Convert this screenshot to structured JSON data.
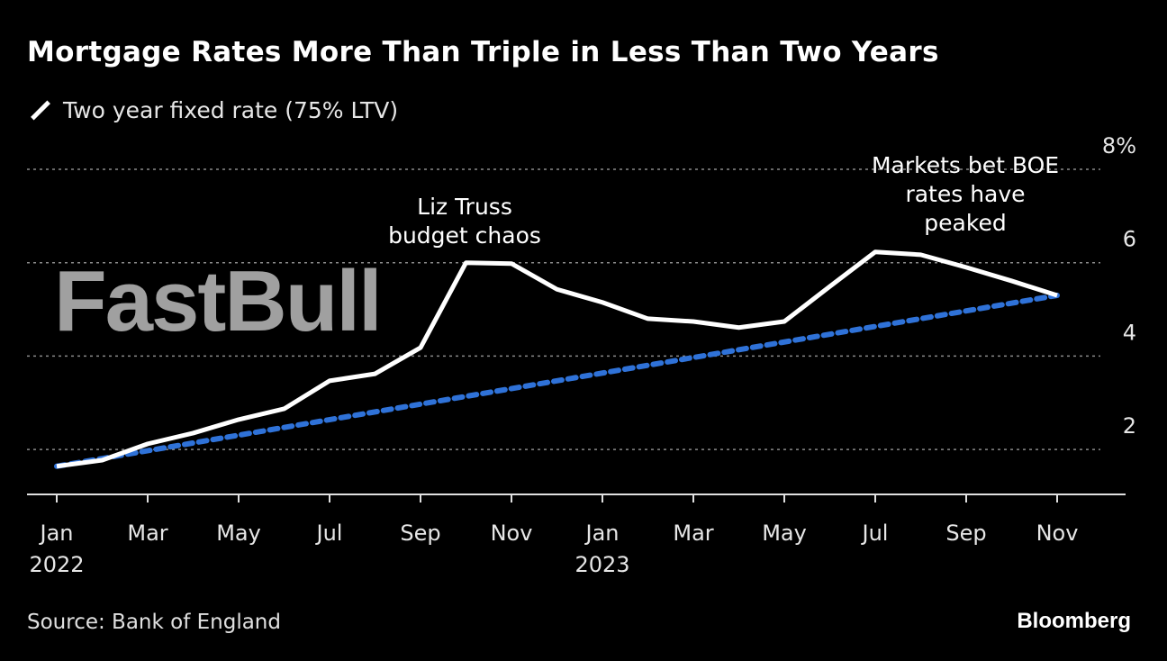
{
  "chart_data": {
    "type": "line",
    "title": "Mortgage Rates More Than Triple in Less Than Two Years",
    "ylim": [
      1,
      8
    ],
    "y_ticks": [
      2,
      4,
      6,
      8
    ],
    "y_tick_labels": [
      "2",
      "4",
      "6",
      "8%"
    ],
    "grid": true,
    "x_ticks": [
      {
        "month": 0,
        "label": "Jan",
        "year": "2022"
      },
      {
        "month": 2,
        "label": "Mar",
        "year": ""
      },
      {
        "month": 4,
        "label": "May",
        "year": ""
      },
      {
        "month": 6,
        "label": "Jul",
        "year": ""
      },
      {
        "month": 8,
        "label": "Sep",
        "year": ""
      },
      {
        "month": 10,
        "label": "Nov",
        "year": ""
      },
      {
        "month": 12,
        "label": "Jan",
        "year": "2023"
      },
      {
        "month": 14,
        "label": "Mar",
        "year": ""
      },
      {
        "month": 16,
        "label": "May",
        "year": ""
      },
      {
        "month": 18,
        "label": "Jul",
        "year": ""
      },
      {
        "month": 20,
        "label": "Sep",
        "year": ""
      },
      {
        "month": 22,
        "label": "Nov",
        "year": ""
      }
    ],
    "x": [
      "2022-01",
      "2022-02",
      "2022-03",
      "2022-04",
      "2022-05",
      "2022-06",
      "2022-07",
      "2022-08",
      "2022-09",
      "2022-10",
      "2022-11",
      "2022-12",
      "2023-01",
      "2023-02",
      "2023-03",
      "2023-04",
      "2023-05",
      "2023-06",
      "2023-07",
      "2023-08",
      "2023-09",
      "2023-10",
      "2023-11"
    ],
    "series": [
      {
        "name": "Two year fixed rate (75% LTV)",
        "color": "#ffffff",
        "values": [
          1.64,
          1.77,
          2.12,
          2.35,
          2.64,
          2.87,
          3.47,
          3.62,
          4.18,
          6.0,
          5.98,
          5.43,
          5.15,
          4.8,
          4.74,
          4.61,
          4.74,
          5.49,
          6.23,
          6.17,
          5.9,
          5.61,
          5.3
        ]
      }
    ],
    "trendline": {
      "color": "#2f72d8",
      "style": "dotted",
      "from": [
        "2022-01",
        1.64
      ],
      "to": [
        "2023-11",
        5.3
      ]
    },
    "legend": "top-left",
    "annotations": [
      {
        "lines": [
          "Liz Truss",
          "budget chaos"
        ]
      },
      {
        "lines": [
          "Markets bet BOE",
          "rates have",
          "peaked"
        ]
      }
    ]
  },
  "header": {
    "title": "Mortgage Rates More Than Triple in Less Than Two Years"
  },
  "legend": {
    "label": "Two year fixed rate (75% LTV)"
  },
  "footer": {
    "source": "Source: Bank of England",
    "brand": "Bloomberg"
  },
  "watermark": "FastBull"
}
